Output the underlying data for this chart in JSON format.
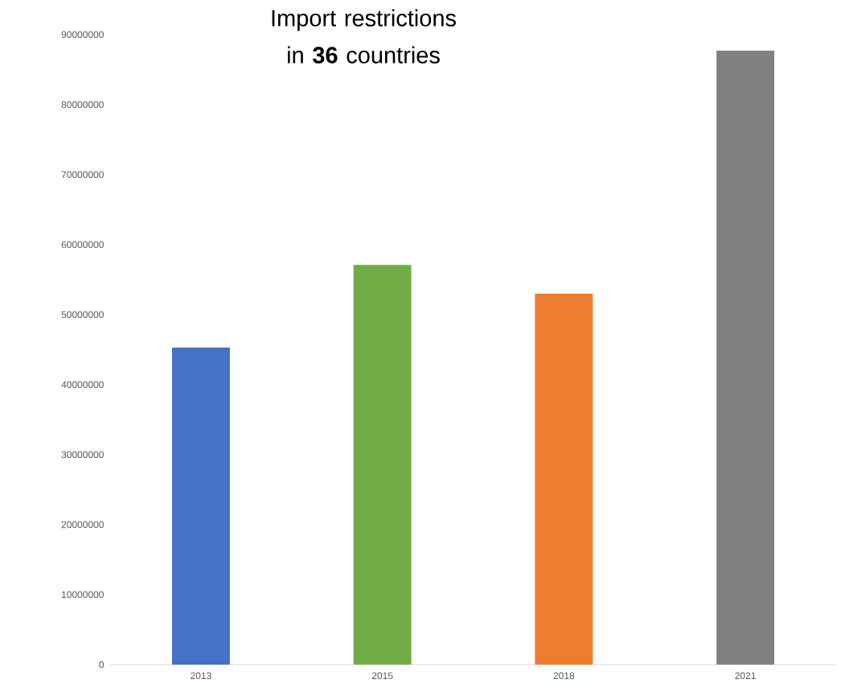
{
  "chart_data": {
    "type": "bar",
    "title": "Import restrictions in **36** countries",
    "categories": [
      "2013",
      "2015",
      "2018",
      "2021"
    ],
    "values": [
      45300000,
      57100000,
      53000000,
      87700000
    ],
    "colors": [
      "#4472c4",
      "#70ad47",
      "#ed7d31",
      "#808080"
    ],
    "ylim": [
      0,
      90000000
    ],
    "yticks": [
      0,
      10000000,
      20000000,
      30000000,
      40000000,
      50000000,
      60000000,
      70000000,
      80000000,
      90000000
    ]
  }
}
